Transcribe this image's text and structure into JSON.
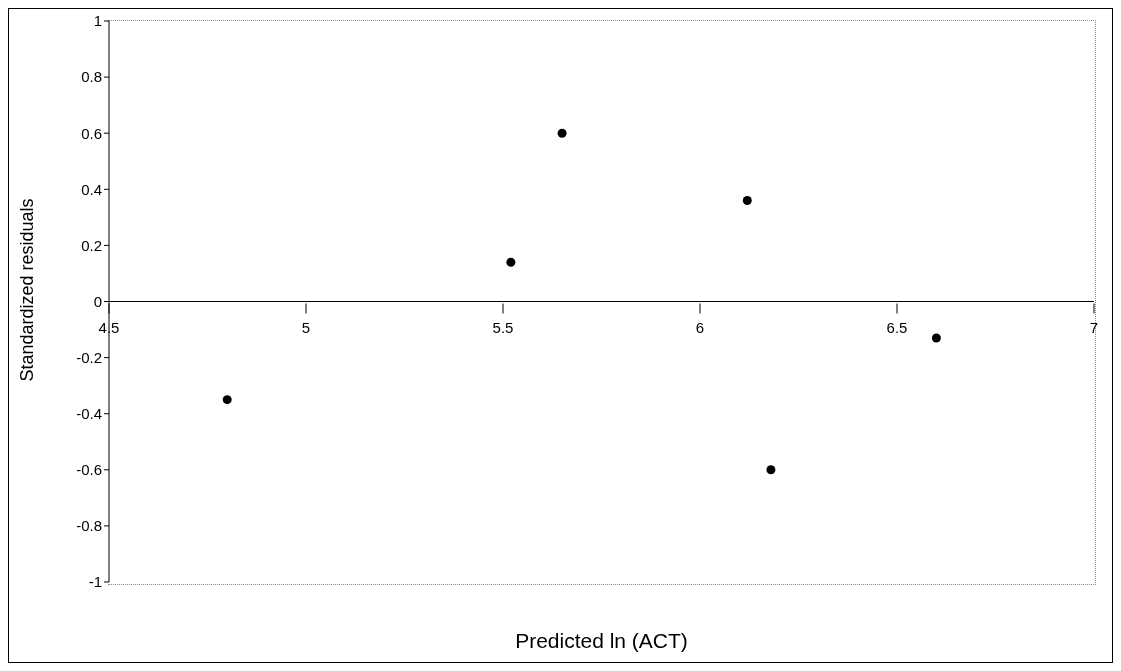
{
  "chart_data": {
    "type": "scatter",
    "xlabel": "Predicted ln (ACT)",
    "ylabel": "Standardized residuals",
    "x": [
      4.8,
      5.52,
      5.65,
      6.12,
      6.18,
      6.6
    ],
    "series": [
      {
        "color": "#000000",
        "values": [
          -0.35,
          0.14,
          0.6,
          0.36,
          -0.6,
          -0.13
        ]
      }
    ],
    "xlim": [
      4.5,
      7
    ],
    "xticks": [
      4.5,
      5,
      5.5,
      6,
      6.5,
      7
    ],
    "ylim": [
      -1,
      1
    ],
    "yticks": [
      -1,
      -0.8,
      -0.6,
      -0.4,
      -0.2,
      0,
      0.2,
      0.4,
      0.6,
      0.8,
      1
    ],
    "grid": false,
    "legend": false,
    "marker": "circle"
  }
}
